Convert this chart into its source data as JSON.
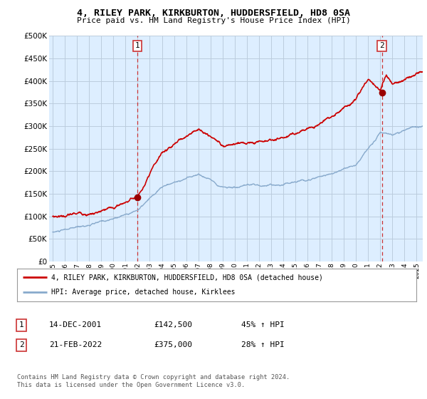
{
  "title": "4, RILEY PARK, KIRKBURTON, HUDDERSFIELD, HD8 0SA",
  "subtitle": "Price paid vs. HM Land Registry's House Price Index (HPI)",
  "ylim": [
    0,
    500000
  ],
  "yticks": [
    0,
    50000,
    100000,
    150000,
    200000,
    250000,
    300000,
    350000,
    400000,
    450000,
    500000
  ],
  "background_color": "#ffffff",
  "plot_bg_color": "#ddeeff",
  "grid_color": "#bbccdd",
  "sale1": {
    "date_num": 2001.96,
    "price": 142500,
    "label": "1"
  },
  "sale2": {
    "date_num": 2022.13,
    "price": 375000,
    "label": "2"
  },
  "legend_entries": [
    "4, RILEY PARK, KIRKBURTON, HUDDERSFIELD, HD8 0SA (detached house)",
    "HPI: Average price, detached house, Kirklees"
  ],
  "table_rows": [
    [
      "1",
      "14-DEC-2001",
      "£142,500",
      "45% ↑ HPI"
    ],
    [
      "2",
      "21-FEB-2022",
      "£375,000",
      "28% ↑ HPI"
    ]
  ],
  "footnote": "Contains HM Land Registry data © Crown copyright and database right 2024.\nThis data is licensed under the Open Government Licence v3.0.",
  "line_color_red": "#cc0000",
  "line_color_blue": "#88aacc",
  "sale_marker_color": "#990000",
  "sale_vline_color": "#cc3333",
  "xmin": 1995.0,
  "xmax": 2025.5,
  "hpi_anchors_x": [
    1995,
    1997,
    2000,
    2002,
    2004,
    2007,
    2009,
    2010,
    2012,
    2014,
    2016,
    2018,
    2020,
    2021,
    2022,
    2023,
    2024,
    2025
  ],
  "hpi_anchors_y": [
    65000,
    72000,
    88000,
    110000,
    155000,
    185000,
    160000,
    160000,
    158000,
    162000,
    180000,
    200000,
    220000,
    255000,
    295000,
    285000,
    295000,
    300000
  ],
  "red_anchors_x": [
    1995,
    1997,
    2000,
    2002,
    2004,
    2007,
    2009,
    2010,
    2012,
    2014,
    2016,
    2018,
    2020,
    2021,
    2022,
    2022.5,
    2023,
    2024,
    2025
  ],
  "red_anchors_y": [
    100000,
    107000,
    115000,
    145000,
    230000,
    290000,
    255000,
    255000,
    260000,
    275000,
    305000,
    330000,
    365000,
    405000,
    385000,
    415000,
    400000,
    415000,
    420000
  ]
}
